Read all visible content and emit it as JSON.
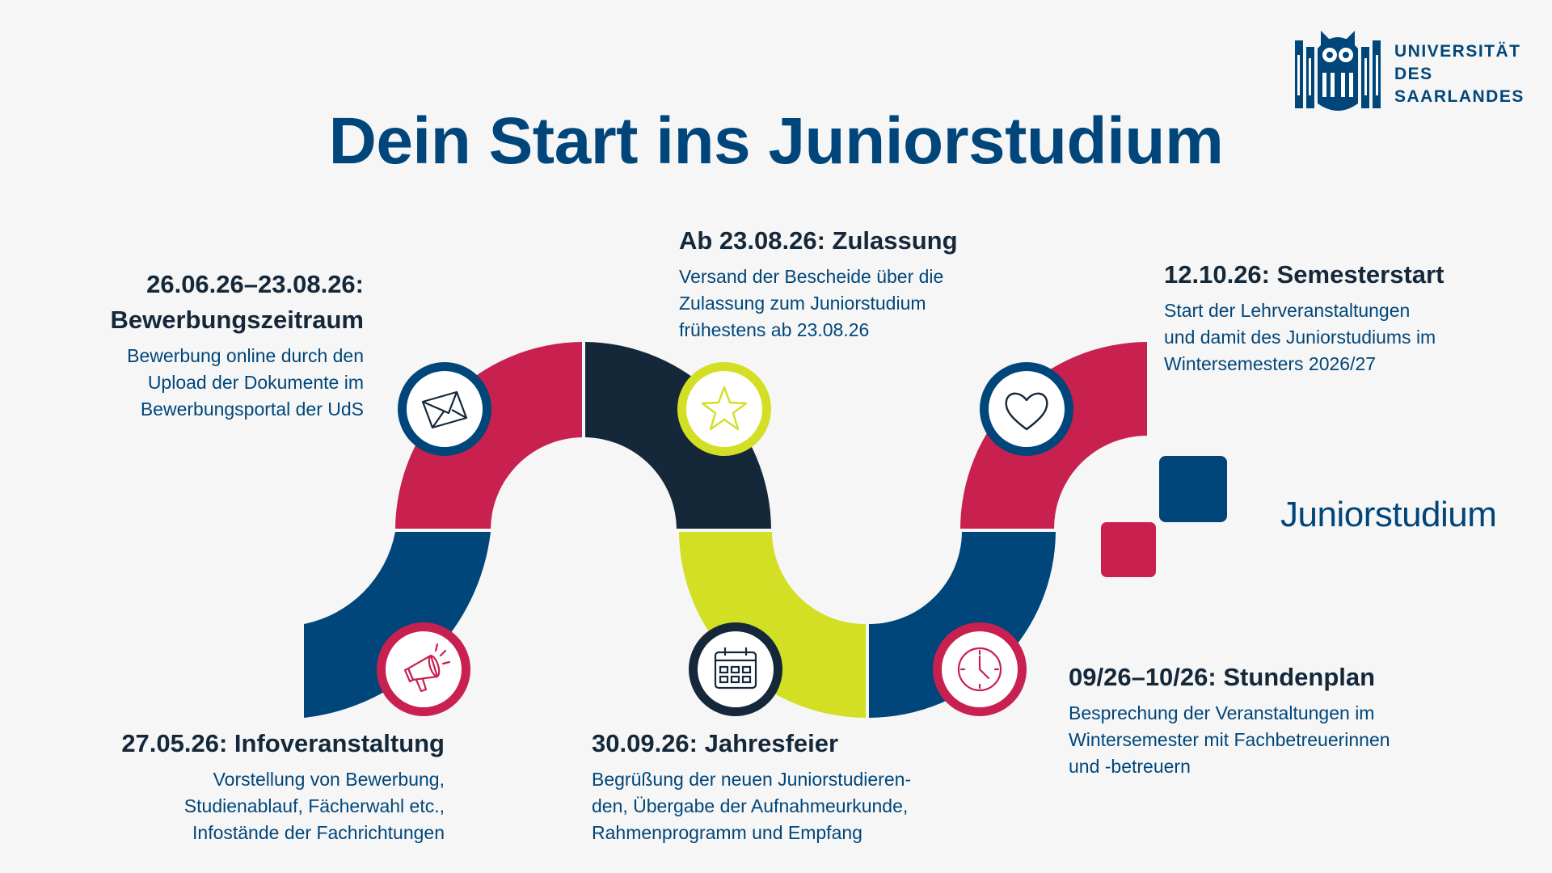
{
  "title": "Dein Start ins Juniorstudium",
  "logo": {
    "lines": [
      "UNIVERSITÄT",
      "DES",
      "SAARLANDES"
    ],
    "icon": "owl-seal-icon"
  },
  "brand": {
    "word": "Juniorstudium",
    "colors": {
      "square_blue": "#00467a",
      "square_red": "#c8204f"
    }
  },
  "colors": {
    "blue": "#00467a",
    "red": "#c8204f",
    "dark_navy": "#14283a",
    "lime": "#d3df24"
  },
  "steps": [
    {
      "id": "bewerbung",
      "heading_lines": [
        "26.06.26–23.08.26:",
        "Bewerbungszeitraum"
      ],
      "text_lines": [
        "Bewerbung online durch den",
        "Upload der Dokumente im",
        "Bewerbungsportal der UdS"
      ],
      "icon": "envelope-icon"
    },
    {
      "id": "zulassung",
      "heading_lines": [
        "Ab 23.08.26: Zulassung"
      ],
      "text_lines": [
        "Versand der Bescheide über die",
        "Zulassung zum Juniorstudium",
        "frühestens ab 23.08.26"
      ],
      "icon": "star-icon"
    },
    {
      "id": "semesterstart",
      "heading_lines": [
        "12.10.26: Semesterstart"
      ],
      "text_lines": [
        "Start der Lehrveranstaltungen",
        "und damit des Juniorstudiums im",
        "Wintersemesters 2026/27"
      ],
      "icon": "heart-icon"
    },
    {
      "id": "infoveranstaltung",
      "heading_lines": [
        "27.05.26: Infoveranstaltung"
      ],
      "text_lines": [
        "Vorstellung von Bewerbung,",
        "Studienablauf, Fächerwahl etc.,",
        "Infostände der Fachrichtungen"
      ],
      "icon": "megaphone-icon"
    },
    {
      "id": "jahresfeier",
      "heading_lines": [
        "30.09.26: Jahresfeier"
      ],
      "text_lines": [
        "Begrüßung der neuen Juniorstudieren-",
        "den, Übergabe der Aufnahmeurkunde,",
        "Rahmenprogramm und Empfang"
      ],
      "icon": "calendar-icon"
    },
    {
      "id": "stundenplan",
      "heading_lines": [
        "09/26–10/26: Stundenplan"
      ],
      "text_lines": [
        "Besprechung der Veranstaltungen im",
        "Wintersemester mit Fachbetreuerinnen",
        "und -betreuern"
      ],
      "icon": "clock-icon"
    }
  ]
}
